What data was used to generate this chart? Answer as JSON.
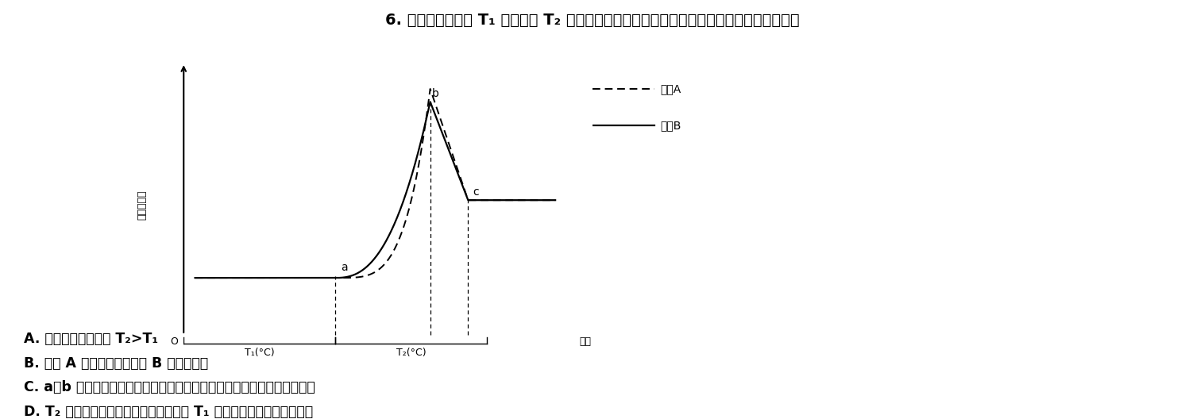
{
  "title": "6. 如图表示机体由 T₁ 环境进人 T₂ 环境的过程中产热量和散热量的变化，下列叙述正确的是",
  "ylabel": "热量相对值",
  "xlabel": "时间",
  "legend_A": "曲线A",
  "legend_B": "曲线B",
  "t1_label": "T₁(°C)",
  "t2_label": "T₂(°C)",
  "origin_label": "O",
  "option_A": "A. 根据图示信息可知 T₂>T₁",
  "option_B": "B. 曲线 A 表示产热量，曲线 B 表示散热量",
  "option_C": "C. a～b 过程中机体通过皮肤毛细血管舒张、汗腺分泌增加等方式增加散热",
  "option_D": "D. T₂ 环境中由于产热量和散热量均高于 T₁ 环境，机体表现为体温升高",
  "bg_color": "#ffffff"
}
